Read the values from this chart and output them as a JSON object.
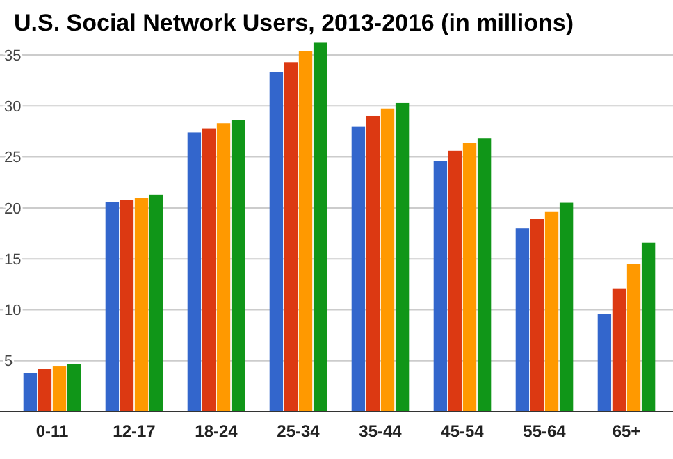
{
  "chart_data": {
    "type": "bar",
    "title": "U.S. Social Network Users, 2013-2016 (in millions)",
    "categories": [
      "0-11",
      "12-17",
      "18-24",
      "25-34",
      "35-44",
      "45-54",
      "55-64",
      "65+"
    ],
    "series": [
      {
        "color": "#3366cc",
        "values": [
          3.8,
          20.6,
          27.4,
          33.3,
          28.0,
          24.6,
          18.0,
          9.6
        ]
      },
      {
        "color": "#dc3912",
        "values": [
          4.2,
          20.8,
          27.8,
          34.3,
          29.0,
          25.6,
          18.9,
          12.1
        ]
      },
      {
        "color": "#ff9900",
        "values": [
          4.5,
          21.0,
          28.3,
          35.4,
          29.7,
          26.4,
          19.6,
          14.5
        ]
      },
      {
        "color": "#109618",
        "values": [
          4.7,
          21.3,
          28.6,
          36.2,
          30.3,
          26.8,
          20.5,
          16.6
        ]
      }
    ],
    "ylim": [
      0,
      36.3
    ],
    "yticks": [
      5,
      10,
      15,
      20,
      25,
      30,
      35
    ],
    "grid": "y"
  }
}
